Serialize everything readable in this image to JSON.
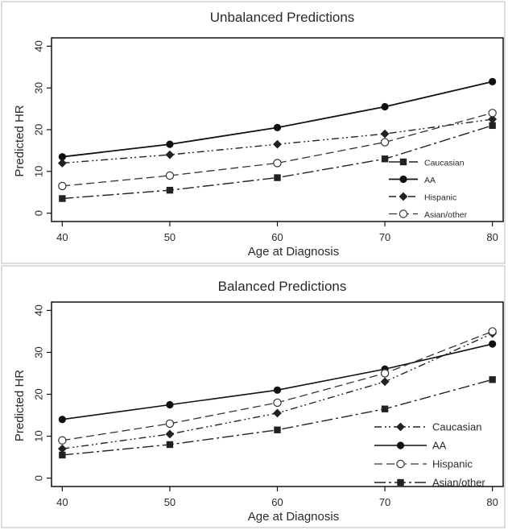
{
  "chart_data": [
    {
      "type": "line",
      "title": "Unbalanced Predictions",
      "xlabel": "Age at Diagnosis",
      "ylabel": "Predicted HR",
      "x": [
        40,
        50,
        60,
        70,
        80
      ],
      "xticks": [
        "40",
        "50",
        "60",
        "70",
        "80"
      ],
      "yticks": [
        "0",
        "10",
        "20",
        "30",
        "40"
      ],
      "xlim": [
        39,
        81
      ],
      "ylim": [
        -2,
        42
      ],
      "grid": false,
      "legend_position": "bottom-right",
      "series": [
        {
          "name": "Caucasian",
          "values": [
            3.5,
            5.5,
            8.5,
            13,
            21
          ],
          "color": "#222222",
          "dash": "14,4,3,4",
          "marker": "square",
          "stroke_width": 1.4
        },
        {
          "name": "AA",
          "values": [
            13.5,
            16.5,
            20.5,
            25.5,
            31.5
          ],
          "color": "#111111",
          "dash": "",
          "marker": "circle",
          "stroke_width": 1.8
        },
        {
          "name": "Hispanic",
          "values": [
            12,
            14,
            16.5,
            19,
            22.5
          ],
          "color": "#222222",
          "dash": "9,4,2,3,2,4",
          "marker": "diamond",
          "stroke_width": 1.4
        },
        {
          "name": "Asian/other",
          "values": [
            6.5,
            9,
            12,
            17,
            24
          ],
          "color": "#333333",
          "dash": "10,5",
          "marker": "open-circle",
          "stroke_width": 1.3
        }
      ]
    },
    {
      "type": "line",
      "title": "Balanced Predictions",
      "xlabel": "Age at Diagnosis",
      "ylabel": "Predicted HR",
      "x": [
        40,
        50,
        60,
        70,
        80
      ],
      "xticks": [
        "40",
        "50",
        "60",
        "70",
        "80"
      ],
      "yticks": [
        "0",
        "10",
        "20",
        "30",
        "40"
      ],
      "xlim": [
        39,
        81
      ],
      "ylim": [
        -2,
        42
      ],
      "grid": false,
      "legend_position": "bottom-right",
      "series": [
        {
          "name": "Caucasian",
          "values": [
            7,
            10.5,
            15.5,
            23,
            34.5
          ],
          "color": "#222222",
          "dash": "9,4,2,3,2,4",
          "marker": "diamond",
          "stroke_width": 1.4
        },
        {
          "name": "AA",
          "values": [
            14,
            17.5,
            21,
            26,
            32
          ],
          "color": "#111111",
          "dash": "",
          "marker": "circle",
          "stroke_width": 1.6
        },
        {
          "name": "Hispanic",
          "values": [
            9,
            13,
            18,
            25,
            35
          ],
          "color": "#333333",
          "dash": "10,5",
          "marker": "open-circle",
          "stroke_width": 1.3
        },
        {
          "name": "Asian/other",
          "values": [
            5.5,
            8,
            11.5,
            16.5,
            23.5
          ],
          "color": "#222222",
          "dash": "14,4,3,4",
          "marker": "square",
          "stroke_width": 1.4
        }
      ]
    }
  ]
}
